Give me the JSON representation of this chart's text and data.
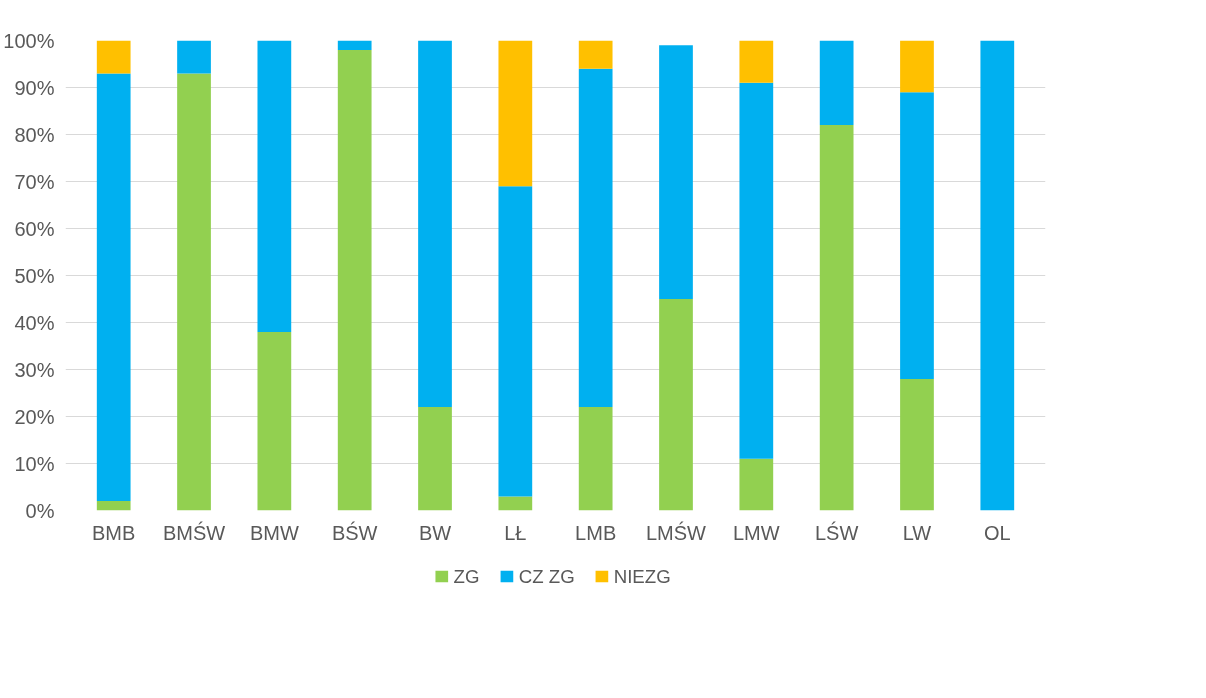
{
  "chart_data": {
    "type": "bar",
    "stacked": true,
    "categories": [
      "BMB",
      "BMŚW",
      "BMW",
      "BŚW",
      "BW",
      "LŁ",
      "LMB",
      "LMŚW",
      "LMW",
      "LŚW",
      "LW",
      "OL"
    ],
    "series": [
      {
        "name": "ZG",
        "color": "#92d050",
        "values": [
          2,
          93,
          38,
          98,
          22,
          3,
          22,
          45,
          11,
          82,
          28,
          0
        ]
      },
      {
        "name": "CZ ZG",
        "color": "#00b0f0",
        "values": [
          91,
          7,
          62,
          2,
          78,
          66,
          72,
          54,
          80,
          18,
          61,
          100
        ]
      },
      {
        "name": "NIEZG",
        "color": "#ffc000",
        "values": [
          7,
          null,
          null,
          0,
          0,
          31,
          6,
          null,
          9,
          0,
          11,
          0
        ]
      }
    ],
    "ylim": [
      0,
      100
    ],
    "yticks": [
      {
        "value": 0,
        "label": "0%"
      },
      {
        "value": 10,
        "label": "10%"
      },
      {
        "value": 20,
        "label": "20%"
      },
      {
        "value": 30,
        "label": "30%"
      },
      {
        "value": 40,
        "label": "40%"
      },
      {
        "value": 50,
        "label": "50%"
      },
      {
        "value": 60,
        "label": "60%"
      },
      {
        "value": 70,
        "label": "70%"
      },
      {
        "value": 80,
        "label": "80%"
      },
      {
        "value": 90,
        "label": "90%"
      },
      {
        "value": 100,
        "label": "100%"
      }
    ],
    "grid": "y",
    "legend": "bottom"
  }
}
